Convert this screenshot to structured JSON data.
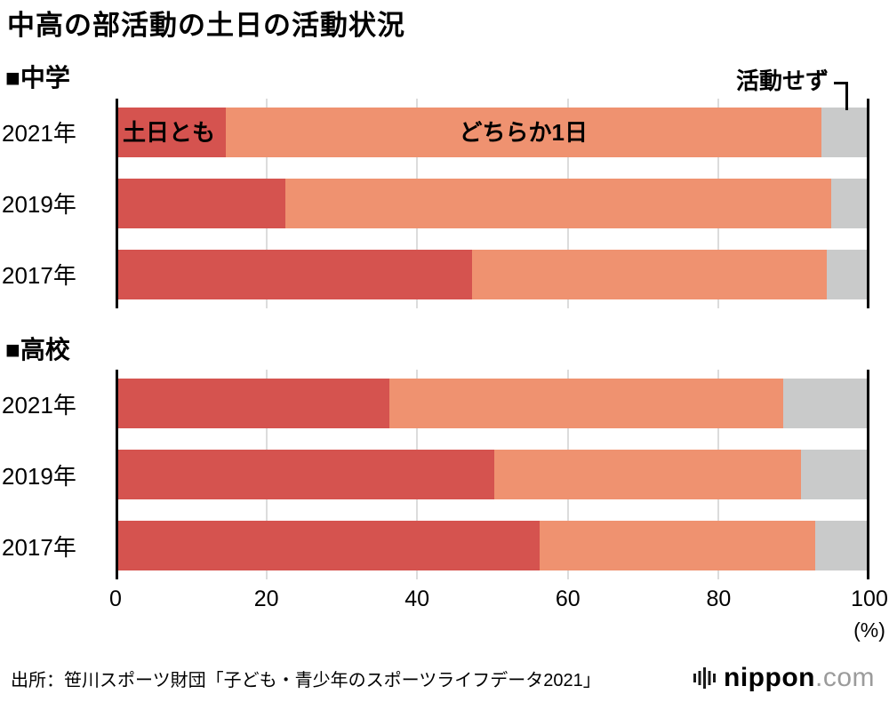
{
  "title": "中高の部活動の土日の活動状況",
  "colors": {
    "series": [
      "#d5534f",
      "#ef9270",
      "#c9caca"
    ],
    "grid": "#dcdcdc",
    "axis": "#000000",
    "logo_gray": "#9b9b9b"
  },
  "axis": {
    "ticks": [
      0,
      20,
      40,
      60,
      80,
      100
    ],
    "unit": "(%)"
  },
  "source": "出所：笹川スポーツ財団「子ども・青少年のスポーツライフデータ2021」",
  "logo": {
    "name": "nippon",
    "suffix": ".com"
  },
  "chart_data": [
    {
      "type": "bar",
      "stacked": true,
      "orientation": "horizontal",
      "title": "■中学",
      "categories": [
        "2021年",
        "2019年",
        "2017年"
      ],
      "series": [
        {
          "name": "土日とも",
          "values": [
            14.6,
            22.5,
            47.3
          ]
        },
        {
          "name": "どちらか1日",
          "values": [
            79.0,
            72.4,
            47.0
          ]
        },
        {
          "name": "活動せず",
          "values": [
            6.4,
            5.1,
            5.7
          ]
        }
      ],
      "xlim": [
        0,
        100
      ],
      "show_inline_labels": true
    },
    {
      "type": "bar",
      "stacked": true,
      "orientation": "horizontal",
      "title": "■高校",
      "categories": [
        "2021年",
        "2019年",
        "2017年"
      ],
      "series": [
        {
          "name": "土日とも",
          "values": [
            36.3,
            50.2,
            56.2
          ]
        },
        {
          "name": "どちらか1日",
          "values": [
            52.3,
            40.7,
            36.6
          ]
        },
        {
          "name": "活動せず",
          "values": [
            11.4,
            9.1,
            7.2
          ]
        }
      ],
      "xlim": [
        0,
        100
      ],
      "show_inline_labels": false
    }
  ]
}
